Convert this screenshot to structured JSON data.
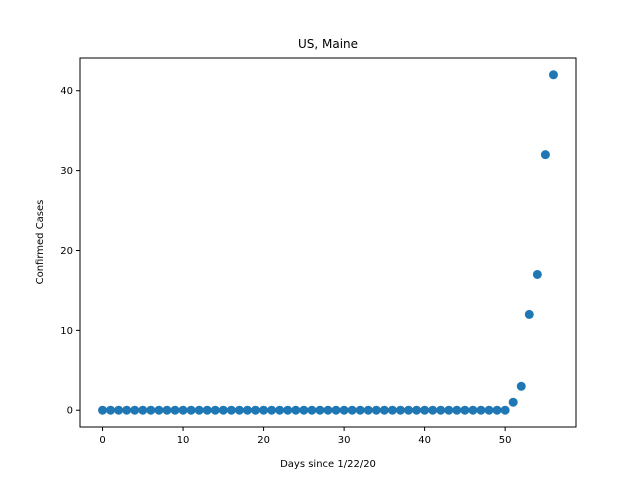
{
  "chart_data": {
    "type": "scatter",
    "title": "US, Maine",
    "xlabel": "Days since 1/22/20",
    "ylabel": "Confirmed Cases",
    "xlim": [
      -2.8,
      58.8
    ],
    "ylim": [
      -2.1,
      44.1
    ],
    "xticks": [
      0,
      10,
      20,
      30,
      40,
      50
    ],
    "yticks": [
      0,
      10,
      20,
      30,
      40
    ],
    "grid": false,
    "marker_color": "#1f77b4",
    "x": [
      0,
      1,
      2,
      3,
      4,
      5,
      6,
      7,
      8,
      9,
      10,
      11,
      12,
      13,
      14,
      15,
      16,
      17,
      18,
      19,
      20,
      21,
      22,
      23,
      24,
      25,
      26,
      27,
      28,
      29,
      30,
      31,
      32,
      33,
      34,
      35,
      36,
      37,
      38,
      39,
      40,
      41,
      42,
      43,
      44,
      45,
      46,
      47,
      48,
      49,
      50,
      51,
      52,
      53,
      54,
      55,
      56
    ],
    "y": [
      0,
      0,
      0,
      0,
      0,
      0,
      0,
      0,
      0,
      0,
      0,
      0,
      0,
      0,
      0,
      0,
      0,
      0,
      0,
      0,
      0,
      0,
      0,
      0,
      0,
      0,
      0,
      0,
      0,
      0,
      0,
      0,
      0,
      0,
      0,
      0,
      0,
      0,
      0,
      0,
      0,
      0,
      0,
      0,
      0,
      0,
      0,
      0,
      0,
      0,
      0,
      1,
      3,
      12,
      17,
      32,
      42
    ]
  }
}
